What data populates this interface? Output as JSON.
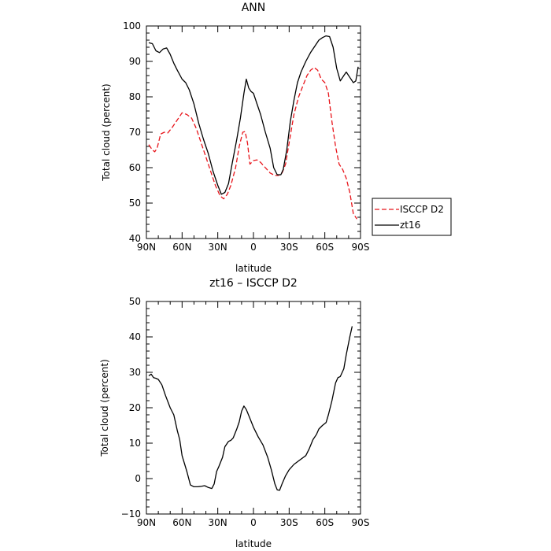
{
  "chart_data": [
    {
      "type": "line",
      "title": "ANN",
      "xlabel": "latitude",
      "ylabel": "Total cloud (percent)",
      "xlim": [
        90,
        -90
      ],
      "ylim": [
        40,
        100
      ],
      "xticks": [
        90,
        60,
        30,
        0,
        -30,
        -60,
        -90
      ],
      "xticklabels": [
        "90N",
        "60N",
        "30N",
        "0",
        "30S",
        "60S",
        "90S"
      ],
      "yticks": [
        40,
        50,
        60,
        70,
        80,
        90,
        100
      ],
      "yticklabels": [
        "40",
        "50",
        "60",
        "70",
        "80",
        "90",
        "100"
      ],
      "legend_position": "right",
      "series": [
        {
          "name": "ISCCP D2",
          "color": "#e8141a",
          "dash": "dashed",
          "points": [
            [
              88,
              66.5
            ],
            [
              85,
              65
            ],
            [
              83,
              64.5
            ],
            [
              81,
              65.5
            ],
            [
              78,
              69.5
            ],
            [
              75,
              70
            ],
            [
              72,
              69.8
            ],
            [
              68,
              71.5
            ],
            [
              64,
              73.5
            ],
            [
              60,
              75.5
            ],
            [
              56,
              75
            ],
            [
              52,
              74
            ],
            [
              48,
              71
            ],
            [
              44,
              67
            ],
            [
              40,
              63
            ],
            [
              36,
              59
            ],
            [
              32,
              55
            ],
            [
              28,
              52
            ],
            [
              25,
              51.2
            ],
            [
              22,
              52.5
            ],
            [
              19,
              55
            ],
            [
              15,
              60
            ],
            [
              12,
              66
            ],
            [
              9,
              70
            ],
            [
              7,
              70.2
            ],
            [
              5,
              67
            ],
            [
              3,
              61
            ],
            [
              0,
              62
            ],
            [
              -3,
              62.2
            ],
            [
              -6,
              61.5
            ],
            [
              -10,
              60
            ],
            [
              -14,
              58.5
            ],
            [
              -18,
              57.8
            ],
            [
              -21,
              57.8
            ],
            [
              -24,
              58.5
            ],
            [
              -27,
              61
            ],
            [
              -30,
              67
            ],
            [
              -34,
              75
            ],
            [
              -38,
              80
            ],
            [
              -42,
              83.5
            ],
            [
              -45,
              86
            ],
            [
              -48,
              87.5
            ],
            [
              -51,
              88.3
            ],
            [
              -54,
              87.5
            ],
            [
              -57,
              85
            ],
            [
              -60,
              84
            ],
            [
              -63,
              81
            ],
            [
              -66,
              73
            ],
            [
              -69,
              66
            ],
            [
              -72,
              61
            ],
            [
              -75,
              59.5
            ],
            [
              -78,
              57
            ],
            [
              -81,
              53
            ],
            [
              -84,
              47
            ],
            [
              -87,
              45.5
            ]
          ]
        },
        {
          "name": "zt16",
          "color": "#000000",
          "dash": "solid",
          "points": [
            [
              88,
              95.3
            ],
            [
              85,
              95
            ],
            [
              82,
              93
            ],
            [
              79,
              92.5
            ],
            [
              76,
              93.5
            ],
            [
              73,
              93.8
            ],
            [
              70,
              92
            ],
            [
              67,
              89.5
            ],
            [
              64,
              87.5
            ],
            [
              60,
              85
            ],
            [
              57,
              84
            ],
            [
              54,
              82
            ],
            [
              50,
              78
            ],
            [
              46,
              72.5
            ],
            [
              42,
              68
            ],
            [
              38,
              64
            ],
            [
              34,
              59
            ],
            [
              30,
              55
            ],
            [
              27,
              52.5
            ],
            [
              24,
              53
            ],
            [
              21,
              55.5
            ],
            [
              18,
              61
            ],
            [
              14,
              68
            ],
            [
              11,
              74
            ],
            [
              8,
              81
            ],
            [
              6,
              85
            ],
            [
              4,
              82.5
            ],
            [
              2,
              81.5
            ],
            [
              0,
              81
            ],
            [
              -3,
              78
            ],
            [
              -6,
              75
            ],
            [
              -10,
              70
            ],
            [
              -14,
              65.5
            ],
            [
              -17,
              60
            ],
            [
              -20,
              58
            ],
            [
              -23,
              58
            ],
            [
              -25,
              59.5
            ],
            [
              -28,
              65
            ],
            [
              -31,
              73
            ],
            [
              -34,
              79
            ],
            [
              -37,
              84
            ],
            [
              -40,
              87
            ],
            [
              -44,
              90
            ],
            [
              -48,
              92.5
            ],
            [
              -52,
              94.5
            ],
            [
              -55,
              96
            ],
            [
              -58,
              96.7
            ],
            [
              -61,
              97.2
            ],
            [
              -64,
              97
            ],
            [
              -67,
              94
            ],
            [
              -70,
              88
            ],
            [
              -73,
              84.5
            ],
            [
              -76,
              86
            ],
            [
              -78,
              87
            ],
            [
              -81,
              85.5
            ],
            [
              -84,
              84
            ],
            [
              -86,
              84.5
            ],
            [
              -88,
              88.5
            ]
          ]
        }
      ]
    },
    {
      "type": "line",
      "title": "zt16 – ISCCP D2",
      "xlabel": "latitude",
      "ylabel": "Total cloud (percent)",
      "xlim": [
        90,
        -90
      ],
      "ylim": [
        -10,
        50
      ],
      "xticks": [
        90,
        60,
        30,
        0,
        -30,
        -60,
        -90
      ],
      "xticklabels": [
        "90N",
        "60N",
        "30N",
        "0",
        "30S",
        "60S",
        "90S"
      ],
      "yticks": [
        -10,
        0,
        10,
        20,
        30,
        40,
        50
      ],
      "yticklabels": [
        "−10",
        "0",
        "10",
        "20",
        "30",
        "40",
        "50"
      ],
      "series": [
        {
          "color": "#000000",
          "dash": "solid",
          "points": [
            [
              88,
              29
            ],
            [
              86,
              29.5
            ],
            [
              84,
              28.5
            ],
            [
              82,
              28.3
            ],
            [
              80,
              28
            ],
            [
              77,
              26.5
            ],
            [
              74,
              23.5
            ],
            [
              70,
              20
            ],
            [
              67,
              18
            ],
            [
              64,
              13.5
            ],
            [
              62,
              11
            ],
            [
              60,
              6.5
            ],
            [
              56,
              2
            ],
            [
              53,
              -1.8
            ],
            [
              50,
              -2.3
            ],
            [
              47,
              -2.3
            ],
            [
              44,
              -2.2
            ],
            [
              41,
              -2
            ],
            [
              38,
              -2.5
            ],
            [
              35,
              -2.8
            ],
            [
              33,
              -1.5
            ],
            [
              31,
              2
            ],
            [
              29,
              3.5
            ],
            [
              26,
              6
            ],
            [
              24,
              9
            ],
            [
              21,
              10.5
            ],
            [
              19,
              10.8
            ],
            [
              17,
              11.5
            ],
            [
              14,
              14
            ],
            [
              12,
              16
            ],
            [
              10,
              19
            ],
            [
              8,
              20.5
            ],
            [
              6,
              19.5
            ],
            [
              3,
              17
            ],
            [
              0,
              14.5
            ],
            [
              -4,
              11.8
            ],
            [
              -8,
              9.5
            ],
            [
              -12,
              6
            ],
            [
              -15,
              2.5
            ],
            [
              -18,
              -1.5
            ],
            [
              -20,
              -3.2
            ],
            [
              -22,
              -3.3
            ],
            [
              -24,
              -1.5
            ],
            [
              -27,
              0.8
            ],
            [
              -30,
              2.5
            ],
            [
              -34,
              4
            ],
            [
              -38,
              5
            ],
            [
              -42,
              6
            ],
            [
              -44,
              6.5
            ],
            [
              -47,
              8.5
            ],
            [
              -50,
              11
            ],
            [
              -53,
              12.5
            ],
            [
              -55,
              14
            ],
            [
              -58,
              15
            ],
            [
              -61,
              15.8
            ],
            [
              -63,
              18
            ],
            [
              -66,
              22
            ],
            [
              -69,
              27
            ],
            [
              -71,
              28.5
            ],
            [
              -73,
              28.8
            ],
            [
              -76,
              31
            ],
            [
              -78,
              35
            ],
            [
              -81,
              40
            ],
            [
              -83,
              43
            ]
          ]
        }
      ]
    }
  ]
}
